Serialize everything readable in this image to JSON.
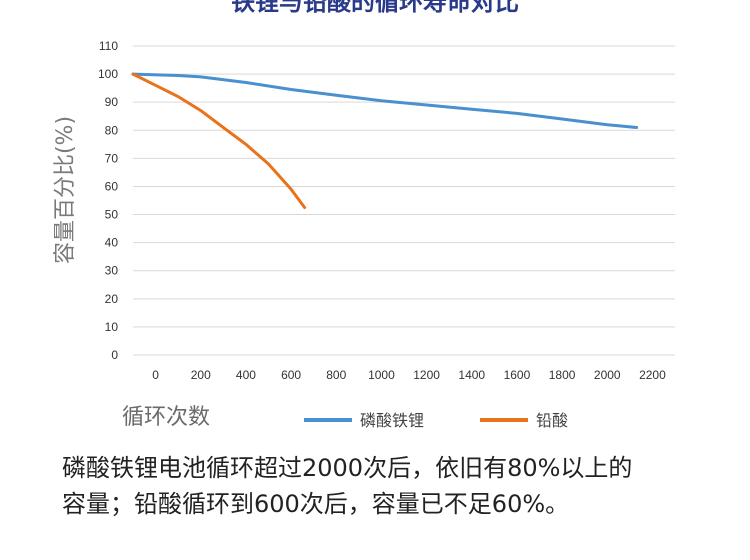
{
  "chart_data": {
    "type": "line",
    "title": "铁锂与铅酸的循环寿命对比",
    "xlabel": "循环次数",
    "ylabel": "容量百分比(%)",
    "xlim": [
      -100,
      2300
    ],
    "ylim": [
      0,
      110
    ],
    "xticks": [
      "0",
      "200",
      "400",
      "600",
      "800",
      "1000",
      "1200",
      "1400",
      "1600",
      "1800",
      "2000",
      "2200"
    ],
    "yticks": [
      "0",
      "10",
      "20",
      "30",
      "40",
      "50",
      "60",
      "70",
      "80",
      "90",
      "100",
      "110"
    ],
    "grid": true,
    "legend_position": "bottom",
    "series": [
      {
        "name": "磷酸铁锂",
        "color": "#4a8fd0",
        "x": [
          -100,
          100,
          200,
          400,
          600,
          800,
          1000,
          1200,
          1400,
          1600,
          1800,
          2000,
          2130
        ],
        "y": [
          100,
          99.5,
          99,
          97,
          94.5,
          92.5,
          90.5,
          89,
          87.5,
          86,
          84,
          82,
          81
        ]
      },
      {
        "name": "铅酸",
        "color": "#e8731c",
        "x": [
          -100,
          0,
          100,
          200,
          300,
          400,
          500,
          600,
          660
        ],
        "y": [
          100,
          96,
          92,
          87,
          81,
          75,
          68,
          59,
          52.5
        ]
      }
    ]
  },
  "caption": {
    "line1": "磷酸铁锂电池循环超过2000次后，依旧有80%以上的",
    "line2": "容量；铅酸循环到600次后，容量已不足60%。"
  }
}
